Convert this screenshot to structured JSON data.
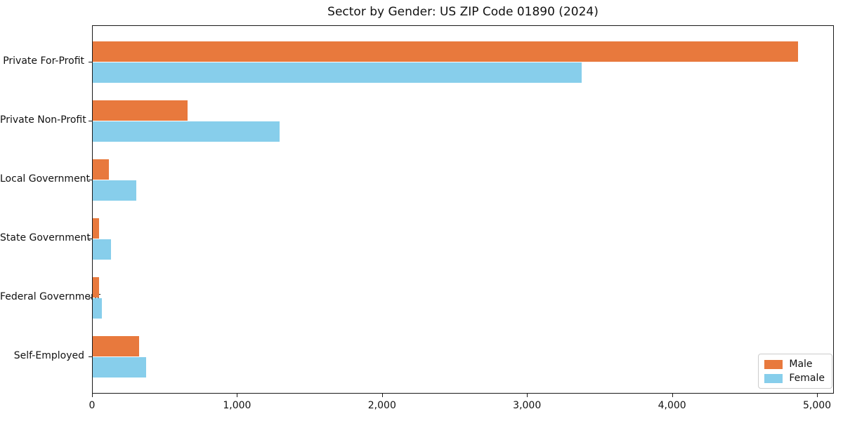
{
  "title": "Sector by Gender: US ZIP Code 01890 (2024)",
  "colors": {
    "male": "#e8793d",
    "female": "#87ceeb",
    "axis": "#1a1a1a",
    "background": "#ffffff",
    "legend_border": "#cccccc"
  },
  "chart_data": {
    "type": "bar",
    "orientation": "horizontal",
    "title": "Sector by Gender: US ZIP Code 01890 (2024)",
    "xlabel": "",
    "ylabel": "",
    "categories": [
      "Private For-Profit",
      "Private Non-Profit",
      "Local Government",
      "State Government",
      "Federal Government",
      "Self-Employed"
    ],
    "series": [
      {
        "name": "Male",
        "color": "#e8793d",
        "values": [
          4865,
          655,
          110,
          45,
          45,
          320
        ]
      },
      {
        "name": "Female",
        "color": "#87ceeb",
        "values": [
          3370,
          1290,
          300,
          125,
          65,
          370
        ]
      }
    ],
    "xlim": [
      0,
      5116
    ],
    "xticks": [
      0,
      1000,
      2000,
      3000,
      4000,
      5000
    ],
    "xtick_labels": [
      "0",
      "1,000",
      "2,000",
      "3,000",
      "4,000",
      "5,000"
    ],
    "grid": false,
    "legend_position": "lower right"
  }
}
